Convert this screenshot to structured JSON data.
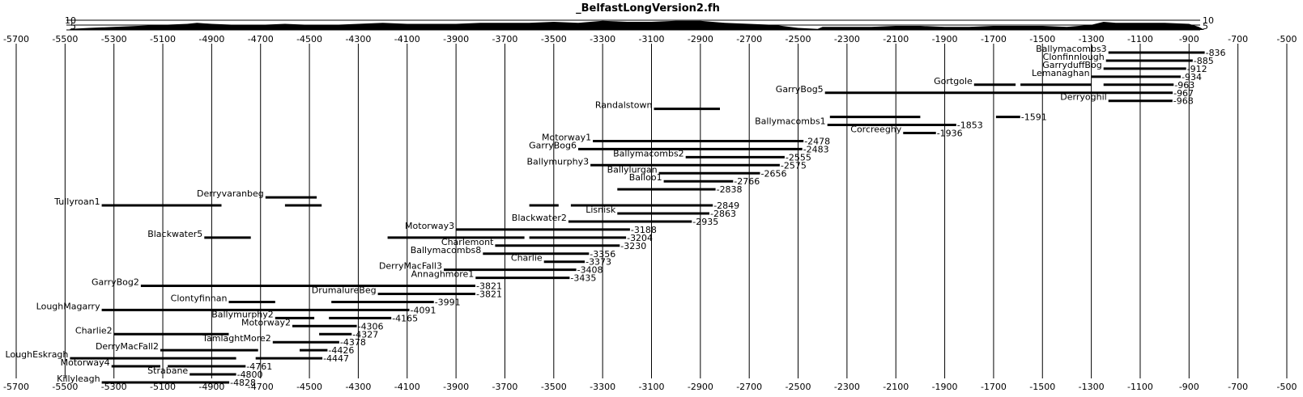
{
  "chart_data": {
    "type": "bar",
    "title": "_BelfastLongVersion2.fh",
    "xlim": [
      -5700,
      -500
    ],
    "x_ticks": [
      -5700,
      -5500,
      -5300,
      -5100,
      -4900,
      -4700,
      -4500,
      -4300,
      -4100,
      -3900,
      -3700,
      -3500,
      -3300,
      -3100,
      -2900,
      -2700,
      -2500,
      -2300,
      -2100,
      -1900,
      -1700,
      -1500,
      -1300,
      -1100,
      -900,
      -700,
      -500
    ],
    "depth_axis": {
      "labels_left": [
        "10",
        "5"
      ],
      "labels_right": [
        "10",
        "5"
      ]
    },
    "depth_profile": [
      [
        -5480,
        1
      ],
      [
        -5400,
        2
      ],
      [
        -5300,
        3
      ],
      [
        -5200,
        4
      ],
      [
        -5100,
        5
      ],
      [
        -5000,
        6
      ],
      [
        -4960,
        7
      ],
      [
        -4900,
        6
      ],
      [
        -4800,
        5
      ],
      [
        -4700,
        5
      ],
      [
        -4600,
        6
      ],
      [
        -4500,
        5
      ],
      [
        -4400,
        5
      ],
      [
        -4300,
        6
      ],
      [
        -4200,
        7
      ],
      [
        -4100,
        6
      ],
      [
        -4000,
        6
      ],
      [
        -3900,
        6
      ],
      [
        -3800,
        7
      ],
      [
        -3700,
        7
      ],
      [
        -3600,
        7
      ],
      [
        -3500,
        8
      ],
      [
        -3400,
        7
      ],
      [
        -3300,
        9
      ],
      [
        -3200,
        8
      ],
      [
        -3100,
        8
      ],
      [
        -3000,
        9
      ],
      [
        -2900,
        9
      ],
      [
        -2800,
        7
      ],
      [
        -2700,
        6
      ],
      [
        -2600,
        5
      ],
      [
        -2500,
        2
      ],
      [
        -2420,
        1
      ],
      [
        -2400,
        3
      ],
      [
        -2300,
        3
      ],
      [
        -2200,
        3
      ],
      [
        -2100,
        4
      ],
      [
        -2000,
        4
      ],
      [
        -1900,
        3
      ],
      [
        -1800,
        3
      ],
      [
        -1700,
        4
      ],
      [
        -1600,
        4
      ],
      [
        -1500,
        4
      ],
      [
        -1400,
        3
      ],
      [
        -1300,
        5
      ],
      [
        -1250,
        8
      ],
      [
        -1200,
        7
      ],
      [
        -1100,
        7
      ],
      [
        -1000,
        7
      ],
      [
        -900,
        6
      ],
      [
        -860,
        3
      ],
      [
        -836,
        0
      ]
    ],
    "series": [
      {
        "name": "Ballymacombs3",
        "segments": [
          [
            -1230,
            -836
          ]
        ],
        "end_label": "-836"
      },
      {
        "name": "Clonfinnlough",
        "segments": [
          [
            -1240,
            -885
          ]
        ],
        "end_label": "-885"
      },
      {
        "name": "GarryduffBog",
        "segments": [
          [
            -1250,
            -912
          ]
        ],
        "end_label": "-912"
      },
      {
        "name": "Lemanaghan",
        "segments": [
          [
            -1300,
            -934
          ]
        ],
        "end_label": "-934"
      },
      {
        "name": "Gortgole",
        "segments": [
          [
            -1780,
            -1610
          ],
          [
            -1590,
            -1300
          ],
          [
            -1250,
            -963
          ]
        ],
        "end_label": "-963"
      },
      {
        "name": "GarryBog5",
        "segments": [
          [
            -2390,
            -967
          ]
        ],
        "end_label": "-967"
      },
      {
        "name": "Derryoghil",
        "segments": [
          [
            -1230,
            -968
          ]
        ],
        "end_label": "-968"
      },
      {
        "name": "Randalstown",
        "segments": [
          [
            -3090,
            -2820
          ]
        ],
        "end_label": ""
      },
      {
        "name": "",
        "segments": [
          [
            -2370,
            -2000
          ],
          [
            -1690,
            -1591
          ]
        ],
        "end_label": "-1591"
      },
      {
        "name": "Ballymacombs1",
        "segments": [
          [
            -2380,
            -1853
          ]
        ],
        "end_label": "-1853"
      },
      {
        "name": "Corcreeghy",
        "segments": [
          [
            -2070,
            -1936
          ]
        ],
        "end_label": "-1936"
      },
      {
        "name": "Motorway1",
        "segments": [
          [
            -3340,
            -2478
          ]
        ],
        "end_label": "-2478"
      },
      {
        "name": "GarryBog6",
        "segments": [
          [
            -3400,
            -2483
          ]
        ],
        "end_label": "-2483"
      },
      {
        "name": "Ballymacombs2",
        "segments": [
          [
            -2960,
            -2555
          ]
        ],
        "end_label": "-2555"
      },
      {
        "name": "Ballymurphy3",
        "segments": [
          [
            -3350,
            -2575
          ]
        ],
        "end_label": "-2575"
      },
      {
        "name": "Ballylurgan",
        "segments": [
          [
            -3070,
            -2656
          ]
        ],
        "end_label": "-2656"
      },
      {
        "name": "Balloo1",
        "segments": [
          [
            -3050,
            -2766
          ]
        ],
        "end_label": "-2766"
      },
      {
        "name": "",
        "segments": [
          [
            -3240,
            -2838
          ]
        ],
        "end_label": "-2838"
      },
      {
        "name": "Derryvaranbeg",
        "segments": [
          [
            -4680,
            -4470
          ]
        ],
        "end_label": ""
      },
      {
        "name": "Tullyroan1",
        "segments": [
          [
            -5350,
            -4860
          ],
          [
            -4600,
            -4450
          ],
          [
            -3600,
            -3480
          ],
          [
            -3430,
            -2849
          ]
        ],
        "end_label": "-2849"
      },
      {
        "name": "Lisnisk",
        "segments": [
          [
            -3240,
            -2863
          ]
        ],
        "end_label": "-2863"
      },
      {
        "name": "Blackwater2",
        "segments": [
          [
            -3440,
            -2935
          ]
        ],
        "end_label": "-2935"
      },
      {
        "name": "Motorway3",
        "segments": [
          [
            -3900,
            -3188
          ]
        ],
        "end_label": "-3188"
      },
      {
        "name": "Blackwater5",
        "segments": [
          [
            -4930,
            -4740
          ],
          [
            -4180,
            -3620
          ],
          [
            -3600,
            -3204
          ]
        ],
        "end_label": "-3204"
      },
      {
        "name": "Charlemont",
        "segments": [
          [
            -3740,
            -3230
          ]
        ],
        "end_label": "-3230"
      },
      {
        "name": "Ballymacombs8",
        "segments": [
          [
            -3790,
            -3356
          ]
        ],
        "end_label": "-3356"
      },
      {
        "name": "Charlie",
        "segments": [
          [
            -3540,
            -3373
          ]
        ],
        "end_label": "-3373"
      },
      {
        "name": "DerryMacFall3",
        "segments": [
          [
            -3950,
            -3408
          ]
        ],
        "end_label": "-3408"
      },
      {
        "name": "Annaghmore1",
        "segments": [
          [
            -3820,
            -3435
          ]
        ],
        "end_label": "-3435"
      },
      {
        "name": "GarryBog2",
        "segments": [
          [
            -5190,
            -3821
          ]
        ],
        "end_label": "-3821"
      },
      {
        "name": "DrumalureBeg",
        "segments": [
          [
            -4220,
            -3821
          ]
        ],
        "end_label": "-3821"
      },
      {
        "name": "Clontyfinnan",
        "segments": [
          [
            -4830,
            -4640
          ],
          [
            -4410,
            -3991
          ]
        ],
        "end_label": "-3991"
      },
      {
        "name": "LoughMagarry",
        "segments": [
          [
            -5350,
            -4091
          ]
        ],
        "end_label": "-4091"
      },
      {
        "name": "Ballymurphy2",
        "segments": [
          [
            -4640,
            -4480
          ],
          [
            -4420,
            -4165
          ]
        ],
        "end_label": "-4165"
      },
      {
        "name": "Motorway2",
        "segments": [
          [
            -4570,
            -4306
          ]
        ],
        "end_label": "-4306"
      },
      {
        "name": "Charlie2",
        "segments": [
          [
            -5300,
            -4830
          ],
          [
            -4460,
            -4327
          ]
        ],
        "end_label": "-4327"
      },
      {
        "name": "TamlaghtMore2",
        "segments": [
          [
            -4650,
            -4378
          ]
        ],
        "end_label": "-4378"
      },
      {
        "name": "DerryMacFall2",
        "segments": [
          [
            -5110,
            -4710
          ],
          [
            -4540,
            -4426
          ]
        ],
        "end_label": "-4426"
      },
      {
        "name": "LoughEskragh",
        "segments": [
          [
            -5480,
            -4800
          ],
          [
            -4720,
            -4447
          ]
        ],
        "end_label": "-4447"
      },
      {
        "name": "Motorway4",
        "segments": [
          [
            -5310,
            -5110
          ],
          [
            -5080,
            -4761
          ]
        ],
        "end_label": "-4761"
      },
      {
        "name": "Strabane",
        "segments": [
          [
            -4990,
            -4800
          ]
        ],
        "end_label": "-4800"
      },
      {
        "name": "Killyleagh",
        "segments": [
          [
            -5350,
            -4828
          ]
        ],
        "end_label": "-4828"
      }
    ]
  }
}
